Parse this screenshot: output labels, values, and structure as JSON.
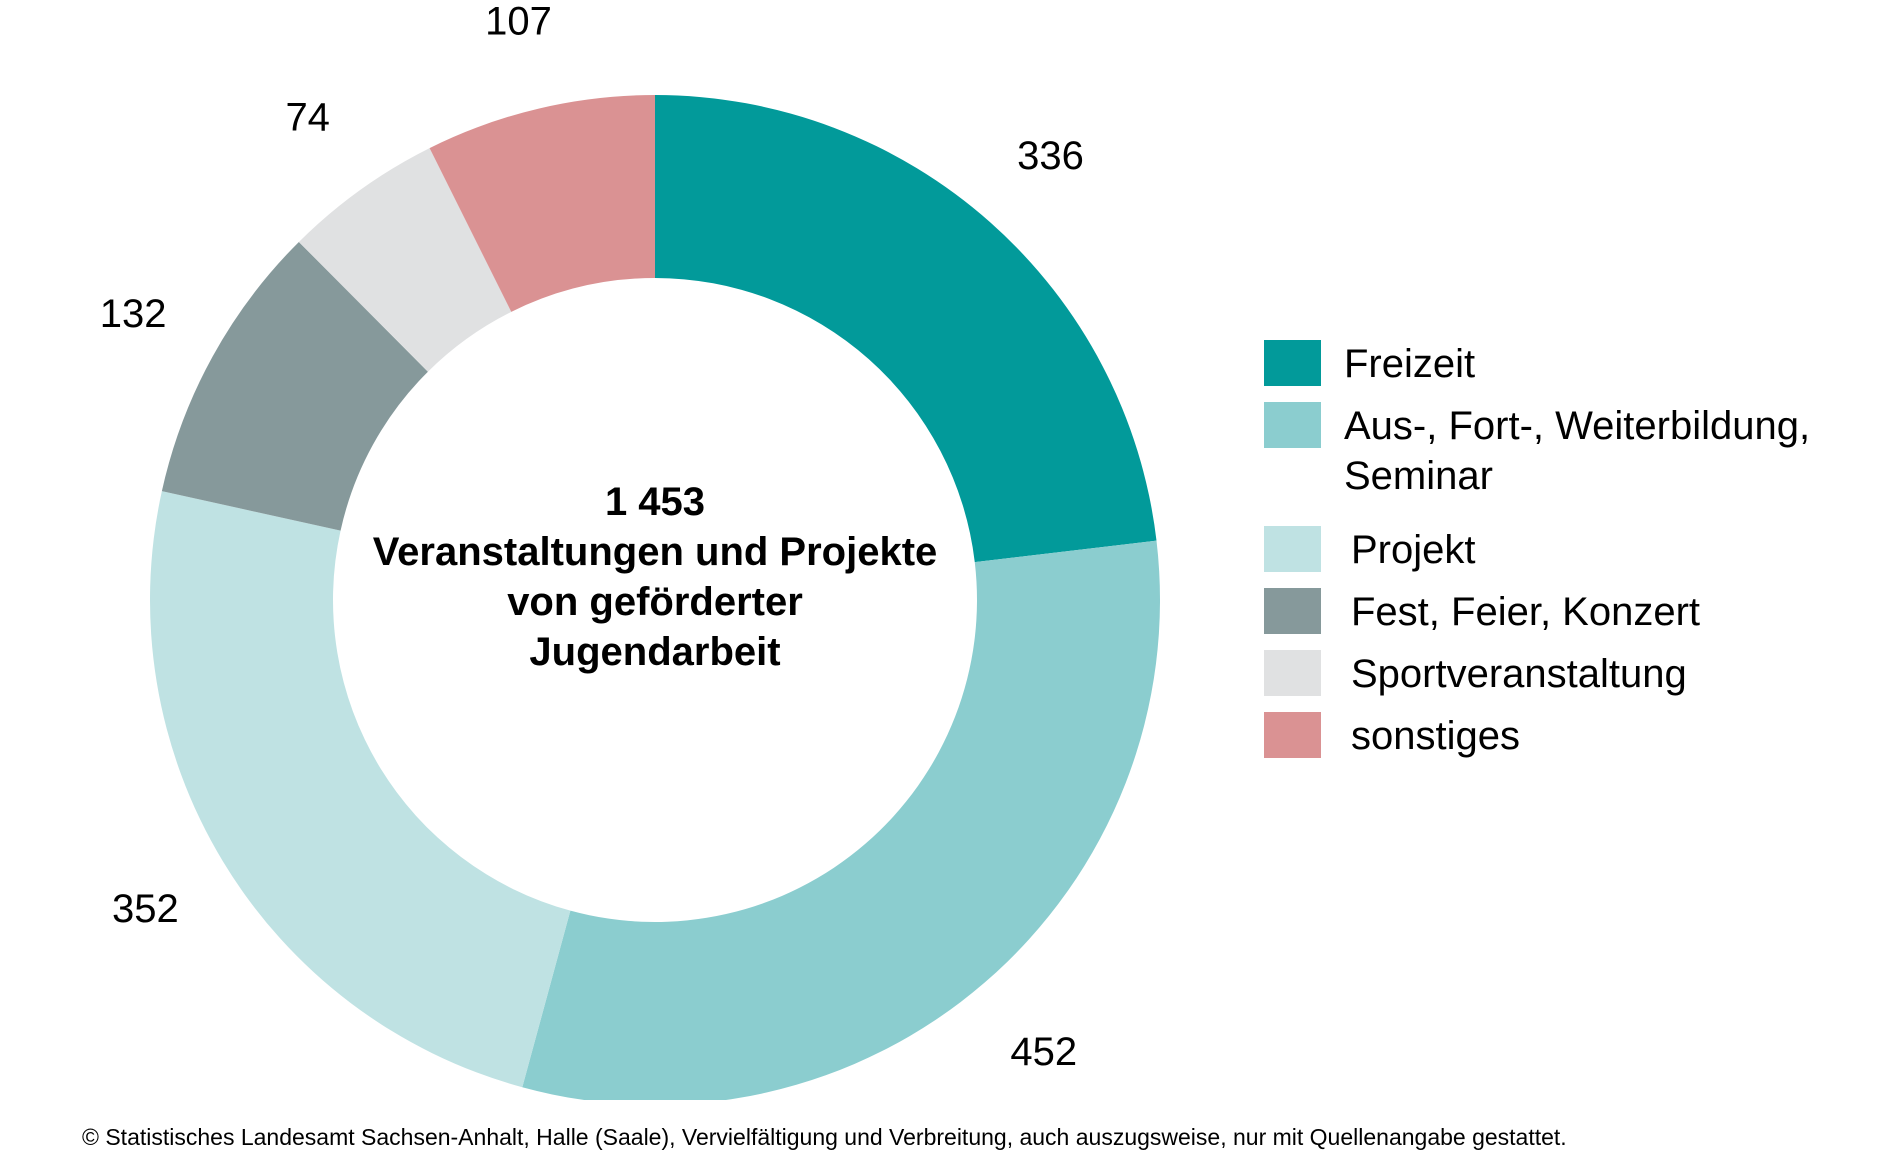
{
  "chart_data": {
    "type": "pie",
    "style": "donut",
    "categories": [
      "Freizeit",
      "Aus-, Fort-, Weiterbildung,\nSeminar",
      "Projekt",
      "Fest, Feier, Konzert",
      "Sportveranstaltung",
      "sonstiges"
    ],
    "values": [
      336,
      452,
      352,
      132,
      74,
      107
    ],
    "colors": [
      "#029a9a",
      "#8bcdcf",
      "#bfe2e3",
      "#86999b",
      "#e0e1e2",
      "#da9293"
    ],
    "center_label": {
      "total": "1 453",
      "lines": [
        "Veranstaltungen und Projekte",
        "von geförderter",
        "Jugendarbeit"
      ]
    },
    "legend_placement": "right"
  },
  "footer": "© Statistisches Landesamt Sachsen-Anhalt, Halle (Saale), Vervielfältigung und Verbreitung, auch auszugsweise, nur mit Quellenangabe gestattet."
}
